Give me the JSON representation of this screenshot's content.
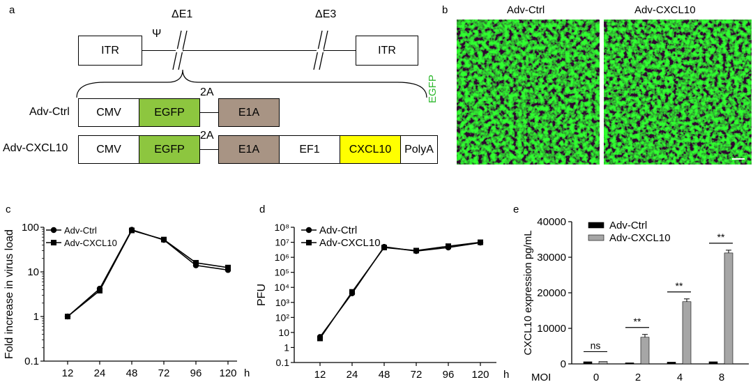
{
  "figure": {
    "panels": [
      "a",
      "b",
      "c",
      "d",
      "e"
    ]
  },
  "panel_a": {
    "itr_left": "ITR",
    "itr_right": "ITR",
    "psi": "Ψ",
    "delta_e1": "ΔE1",
    "delta_e3": "ΔE3",
    "construct_1_name": "Adv-Ctrl",
    "construct_2_name": "Adv-CXCL10",
    "two_a_1": "2A",
    "two_a_2": "2A",
    "cmv": "CMV",
    "egfp": "EGFP",
    "e1a": "E1A",
    "ef1": "EF1",
    "cxcl10": "CXCL10",
    "polya": "PolyA",
    "colors": {
      "egfp": "#8dc63f",
      "e1a": "#a89484",
      "cxcl10": "#ffff00"
    }
  },
  "panel_b": {
    "col_1": "Adv-Ctrl",
    "col_2": "Adv-CXCL10",
    "row_label": "EGFP",
    "row_label_color": "#2eb82e"
  },
  "chart_data": [
    {
      "panel": "c",
      "type": "line",
      "xlabel": "h",
      "ylabel": "Fold increase in virus load",
      "yscale": "log",
      "ylim": [
        0.1,
        100
      ],
      "x": [
        12,
        24,
        48,
        72,
        96,
        120
      ],
      "yticks": [
        "0.1",
        "1",
        "10",
        "100"
      ],
      "series": [
        {
          "name": "Adv-Ctrl",
          "marker": "circle",
          "values": [
            1,
            4.2,
            88,
            52,
            14,
            11
          ]
        },
        {
          "name": "Adv-CXCL10",
          "marker": "square",
          "values": [
            1,
            3.8,
            85,
            53,
            16,
            12.5
          ]
        }
      ]
    },
    {
      "panel": "d",
      "type": "line",
      "xlabel": "h",
      "ylabel": "PFU",
      "yscale": "log",
      "ylim": [
        0.1,
        100000000
      ],
      "x": [
        12,
        24,
        48,
        72,
        96,
        120
      ],
      "yticks": [
        "0.1",
        "1",
        "10",
        "10²",
        "10³",
        "10⁴",
        "10⁵",
        "10⁶",
        "10⁷",
        "10⁸"
      ],
      "series": [
        {
          "name": "Adv-Ctrl",
          "marker": "circle",
          "values": [
            5,
            4000,
            5000000,
            2600000,
            4500000,
            9500000
          ]
        },
        {
          "name": "Adv-CXCL10",
          "marker": "square",
          "values": [
            4,
            5000,
            4500000,
            2800000,
            5500000,
            10000000
          ]
        }
      ]
    },
    {
      "panel": "e",
      "type": "bar",
      "xlabel": "MOI",
      "ylabel": "CXCL10 expression pg/mL",
      "ylim": [
        0,
        40000
      ],
      "yticks": [
        "0",
        "10000",
        "20000",
        "30000",
        "40000"
      ],
      "categories": [
        "0",
        "2",
        "4",
        "8"
      ],
      "series": [
        {
          "name": "Adv-Ctrl",
          "color": "#000000",
          "values": [
            600,
            300,
            500,
            600
          ]
        },
        {
          "name": "Adv-CXCL10",
          "color": "#a6a6a6",
          "values": [
            700,
            7500,
            17500,
            31200
          ]
        }
      ],
      "significance": [
        "ns",
        "**",
        "**",
        "**"
      ]
    }
  ]
}
